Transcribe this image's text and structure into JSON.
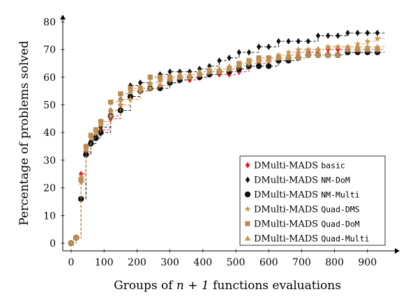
{
  "chart_data": {
    "type": "line",
    "xlabel_prefix": "Groups of ",
    "xlabel_math": "n + 1",
    "xlabel_suffix": " functions evaluations",
    "ylabel": "Percentage of problems solved",
    "xlim": [
      -10,
      960
    ],
    "ylim": [
      -2,
      82
    ],
    "x_ticks": [
      0,
      100,
      200,
      300,
      400,
      500,
      600,
      700,
      800,
      900
    ],
    "y_ticks": [
      0,
      10,
      20,
      30,
      40,
      50,
      60,
      70,
      80
    ],
    "grid": false,
    "legend_position": "bottom-right",
    "x": [
      0,
      15,
      30,
      45,
      60,
      75,
      90,
      120,
      150,
      180,
      210,
      240,
      270,
      300,
      330,
      360,
      390,
      420,
      450,
      480,
      510,
      540,
      570,
      600,
      630,
      660,
      690,
      720,
      750,
      780,
      810,
      840,
      870,
      900,
      930
    ],
    "series": [
      {
        "name_prefix": "DMulti-MADS ",
        "name_code": "basic",
        "color": "#e8191e",
        "marker": "diamond",
        "values": [
          0,
          2,
          25,
          33,
          37,
          38,
          41,
          45,
          50,
          53,
          55,
          56,
          57,
          58,
          59,
          59,
          60,
          61,
          61,
          61,
          62,
          64,
          65,
          66,
          67,
          68,
          69,
          69,
          70,
          70,
          70,
          70,
          70,
          70,
          70
        ]
      },
      {
        "name_prefix": "DMulti-MADS ",
        "name_code": "NM-DoM",
        "color": "#111111",
        "marker": "diamond",
        "values": [
          0,
          2,
          16,
          32,
          37,
          39,
          42,
          48,
          52,
          57,
          58,
          60,
          61,
          62,
          62,
          62,
          63,
          64,
          66,
          67,
          69,
          69,
          71,
          71,
          73,
          73,
          73,
          73,
          75,
          75,
          75,
          76,
          76,
          76,
          76
        ]
      },
      {
        "name_prefix": "DMulti-MADS ",
        "name_code": "NM-Multi",
        "color": "#111111",
        "marker": "circle",
        "values": [
          0,
          2,
          16,
          32,
          36,
          38,
          40,
          46,
          48,
          53,
          55,
          56,
          56,
          58,
          59,
          60,
          60,
          61,
          62,
          62,
          63,
          64,
          64,
          64,
          66,
          66,
          67,
          68,
          68,
          68,
          68,
          69,
          69,
          69,
          69
        ]
      },
      {
        "name_prefix": "DMulti-MADS ",
        "name_code": "Quad-DMS",
        "color": "#c9964f",
        "marker": "star",
        "values": [
          0,
          2,
          22,
          34,
          38,
          40,
          44,
          46,
          50,
          52,
          55,
          56,
          57,
          59,
          60,
          60,
          61,
          62,
          62,
          63,
          64,
          65,
          66,
          67,
          68,
          69,
          70,
          70,
          70,
          71,
          71,
          71,
          72,
          73,
          74
        ]
      },
      {
        "name_prefix": "DMulti-MADS ",
        "name_code": "Quad-DoM",
        "color": "#b98a54",
        "marker": "square",
        "values": [
          0,
          2,
          23,
          35,
          39,
          41,
          44,
          51,
          54,
          56,
          56,
          60,
          60,
          60,
          60,
          60,
          61,
          62,
          62,
          63,
          65,
          66,
          67,
          67,
          67,
          67,
          67,
          68,
          68,
          68,
          68,
          70,
          70,
          70,
          70
        ]
      },
      {
        "name_prefix": "DMulti-MADS ",
        "name_code": "Quad-Multi",
        "color": "#c39152",
        "marker": "triangle",
        "values": [
          0,
          2,
          24,
          34,
          39,
          41,
          43,
          48,
          52,
          55,
          56,
          58,
          59,
          60,
          61,
          61,
          62,
          63,
          63,
          64,
          65,
          66,
          66,
          66,
          67,
          68,
          69,
          70,
          70,
          71,
          71,
          71,
          71,
          71,
          71
        ]
      }
    ]
  }
}
